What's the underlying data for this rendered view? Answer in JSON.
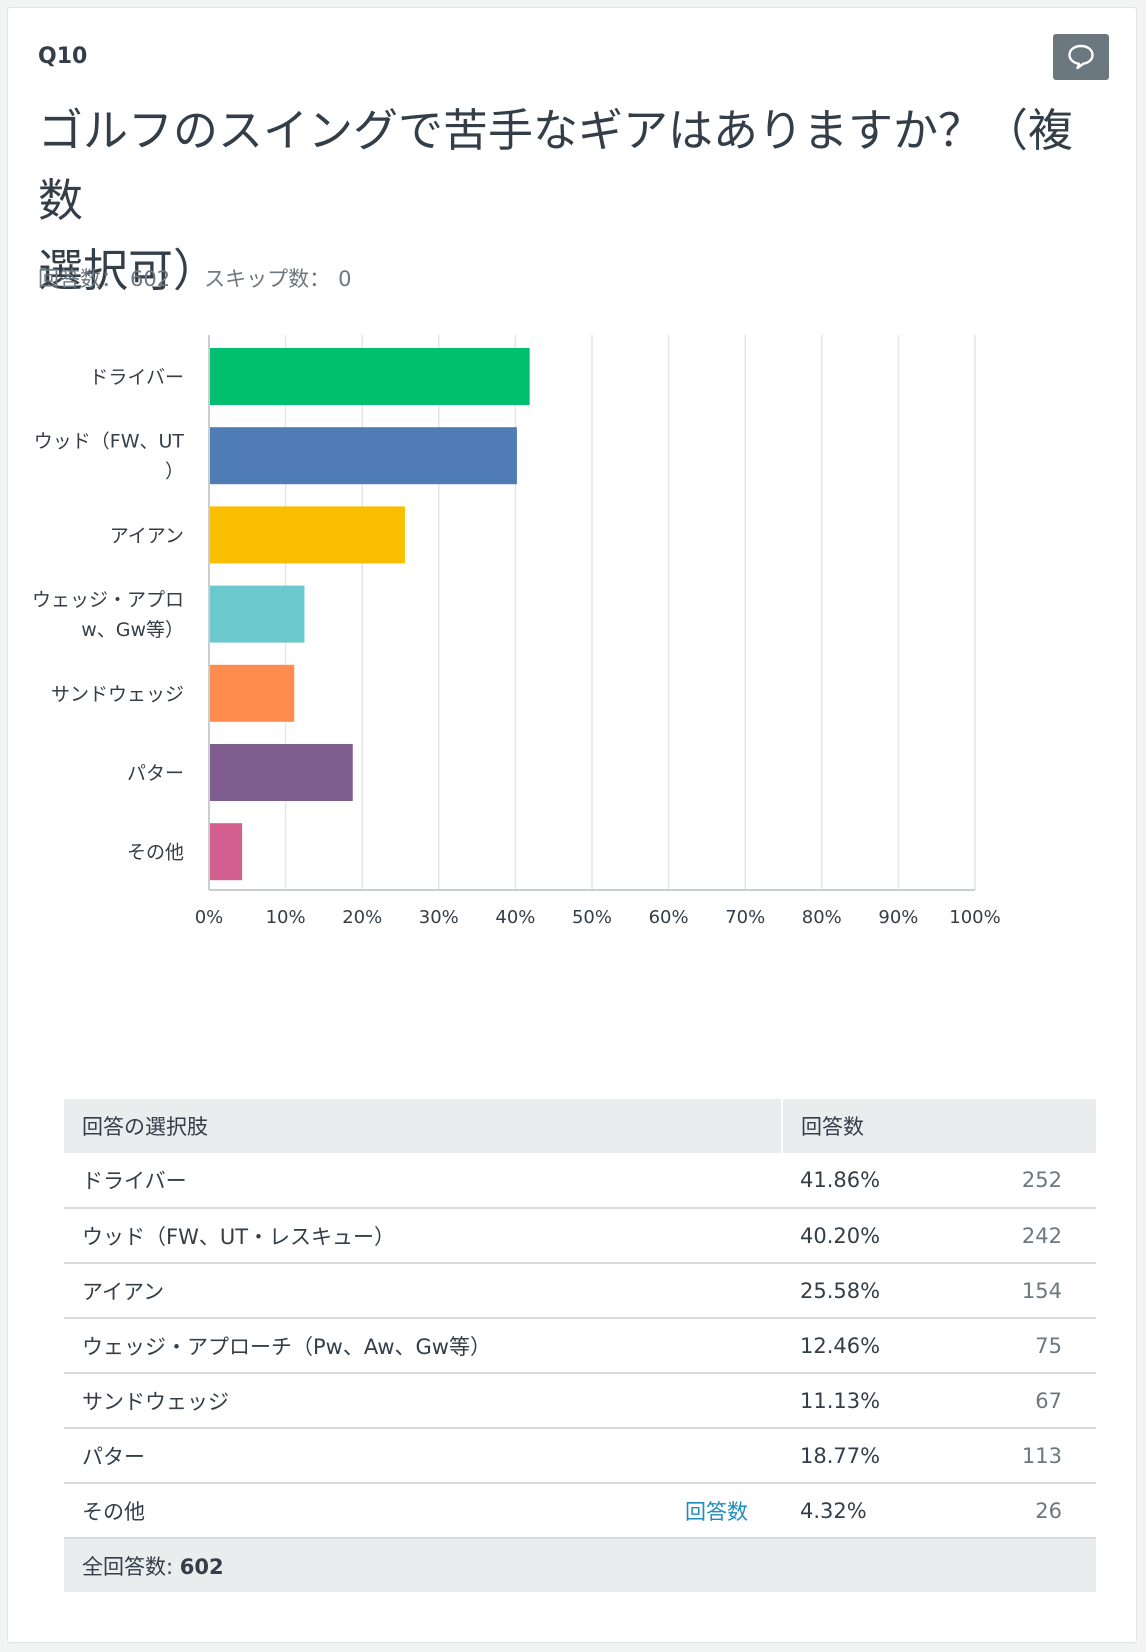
{
  "question": {
    "number": "Q10",
    "title": "ゴルフのスイングで苦手なギアはありますか？（複数選択可）",
    "title_lines": [
      "ゴルフのスイングで苦手なギアはありますか？（複数",
      "選択可）"
    ],
    "answered_label": "回答数：",
    "answered": "602",
    "skipped_label": "スキップ数：",
    "skipped": "0",
    "comment_icon": "speech-bubble-icon"
  },
  "chart_data": {
    "type": "bar",
    "orientation": "horizontal",
    "categories": [
      "ドライバー",
      "ウッド（FW、UT・レスキュー）",
      "アイアン",
      "ウェッジ・アプローチ（Pw、Aw、Gw等）",
      "サンドウェッジ",
      "パター",
      "その他"
    ],
    "category_display_lines": [
      [
        "ドライバー"
      ],
      [
        "ウッド（FW、UT",
        "）"
      ],
      [
        "アイアン"
      ],
      [
        "ウェッジ・アプロ",
        "w、Gw等）"
      ],
      [
        "サンドウェッジ"
      ],
      [
        "パター"
      ],
      [
        "その他"
      ]
    ],
    "values": [
      41.86,
      40.2,
      25.58,
      12.46,
      11.13,
      18.77,
      4.32
    ],
    "colors": [
      "#00bf6f",
      "#507cb6",
      "#f9be00",
      "#6bc8cd",
      "#ff8b4f",
      "#7f5d8f",
      "#d25f90"
    ],
    "xlim": [
      0,
      100
    ],
    "x_ticks": [
      "0%",
      "10%",
      "20%",
      "30%",
      "40%",
      "50%",
      "60%",
      "70%",
      "80%",
      "90%",
      "100%"
    ],
    "grid": true,
    "xlabel": "",
    "ylabel": ""
  },
  "table": {
    "headers": {
      "choice": "回答の選択肢",
      "responses": "回答数"
    },
    "rows": [
      {
        "label": "ドライバー",
        "pct": "41.86%",
        "count": "252",
        "link": ""
      },
      {
        "label": "ウッド（FW、UT・レスキュー）",
        "pct": "40.20%",
        "count": "242",
        "link": ""
      },
      {
        "label": "アイアン",
        "pct": "25.58%",
        "count": "154",
        "link": ""
      },
      {
        "label": "ウェッジ・アプローチ（Pw、Aw、Gw等）",
        "pct": "12.46%",
        "count": "75",
        "link": ""
      },
      {
        "label": "サンドウェッジ",
        "pct": "11.13%",
        "count": "67",
        "link": ""
      },
      {
        "label": "パター",
        "pct": "18.77%",
        "count": "113",
        "link": ""
      },
      {
        "label": "その他",
        "pct": "4.32%",
        "count": "26",
        "link": "回答数"
      }
    ],
    "total_label": "全回答数:",
    "total_value": "602"
  }
}
